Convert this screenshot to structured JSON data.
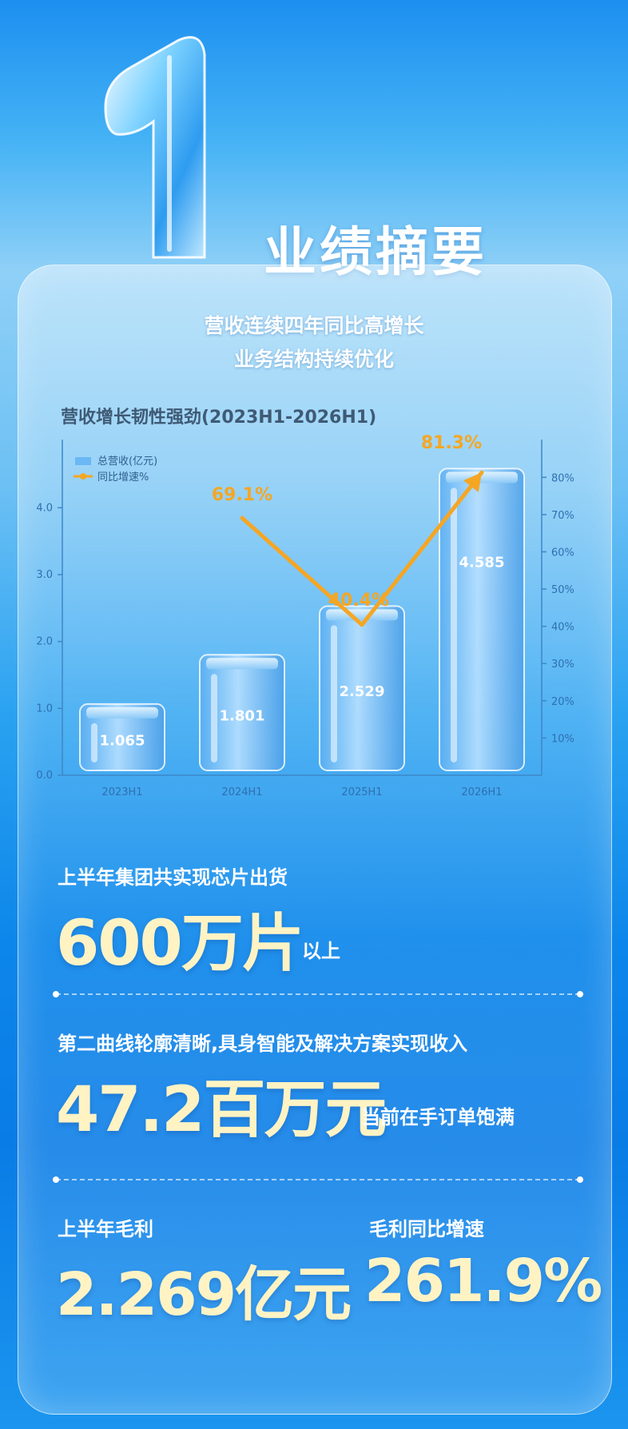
{
  "section": {
    "number": "1",
    "title": "业绩摘要"
  },
  "headline": {
    "line1": "营收连续四年同比高增长",
    "line2": "业务结构持续优化"
  },
  "chart_data": {
    "type": "bar",
    "title": "营收增长韧性强劲(2023H1-2026H1)",
    "categories": [
      "2023H1",
      "2024H1",
      "2025H1",
      "2026H1"
    ],
    "series": [
      {
        "name": "总营收(亿元)",
        "type": "bar",
        "axis": "left",
        "values": [
          1.065,
          1.801,
          2.529,
          4.585
        ],
        "labels": [
          "1.065",
          "1.801",
          "2.529",
          "4.585"
        ]
      },
      {
        "name": "同比增速%",
        "type": "line",
        "axis": "right",
        "x": [
          "2024H1",
          "2025H1",
          "2026H1"
        ],
        "values": [
          69.1,
          40.4,
          81.3
        ],
        "labels": [
          "69.1%",
          "40.4%",
          "81.3%"
        ]
      }
    ],
    "y_left": {
      "ticks": [
        "0.0",
        "1.0",
        "2.0",
        "3.0",
        "4.0"
      ],
      "range": [
        0,
        4.9
      ]
    },
    "y_right": {
      "ticks": [
        "10%",
        "20%",
        "30%",
        "40%",
        "50%",
        "60%",
        "70%",
        "80%"
      ],
      "range": [
        0,
        88
      ]
    },
    "legend": "top-left",
    "grid": true,
    "colors": {
      "bar": "#6bb8f4",
      "line": "#f5a623",
      "label_line": "#f5a623",
      "axis": "#3d86c8"
    }
  },
  "stats": {
    "shipment": {
      "label": "上半年集团共实现芯片出货",
      "value": "600万片",
      "note": "以上"
    },
    "second_curve": {
      "label": "第二曲线轮廓清晰,具身智能及解决方案实现收入",
      "value": "47.2百万元",
      "note": "当前在手订单饱满"
    },
    "gross_profit": {
      "label": "上半年毛利",
      "value": "2.269亿元"
    },
    "gross_growth": {
      "label": "毛利同比增速",
      "value": "261.9%"
    }
  }
}
